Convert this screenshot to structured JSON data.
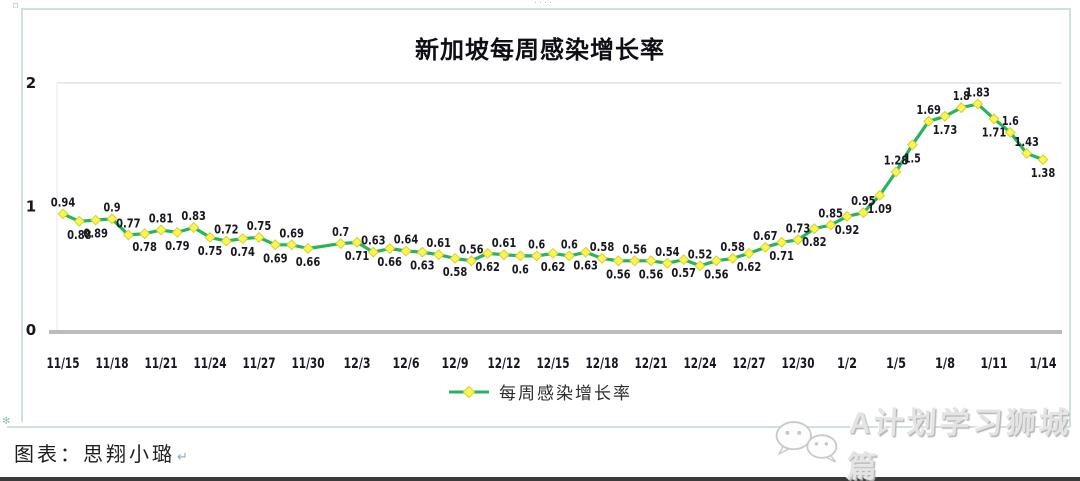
{
  "chart_data": {
    "type": "line",
    "title": "新加坡每周感染增长率",
    "legend": "每周感染增长率",
    "legend_position": "bottom-center",
    "ylim": [
      0,
      2
    ],
    "y_ticks": [
      0,
      1,
      2
    ],
    "x_tick_labels": [
      "11/15",
      "11/18",
      "11/21",
      "11/24",
      "11/27",
      "11/30",
      "12/3",
      "12/6",
      "12/9",
      "12/12",
      "12/15",
      "12/18",
      "12/21",
      "12/24",
      "12/27",
      "12/30",
      "1/2",
      "1/5",
      "1/8",
      "1/11",
      "1/14"
    ],
    "points_per_tick_interval": 3,
    "values": [
      0.94,
      0.88,
      0.89,
      0.9,
      0.77,
      0.78,
      0.81,
      0.79,
      0.83,
      0.75,
      0.72,
      0.74,
      0.75,
      0.69,
      0.69,
      0.66,
      null,
      0.7,
      0.71,
      0.63,
      0.66,
      0.64,
      0.63,
      0.61,
      0.58,
      0.56,
      0.62,
      0.61,
      0.6,
      0.6,
      0.62,
      0.6,
      0.63,
      0.58,
      0.56,
      0.56,
      0.56,
      0.54,
      0.57,
      0.52,
      0.56,
      0.58,
      0.62,
      0.67,
      0.71,
      0.73,
      0.82,
      0.85,
      0.92,
      0.95,
      1.09,
      1.28,
      1.5,
      1.69,
      1.73,
      1.8,
      1.83,
      1.71,
      1.6,
      1.43,
      1.38
    ],
    "label_positions": [
      "above",
      "below",
      "below",
      "above",
      "above",
      "below",
      "above",
      "below",
      "above",
      "below",
      "above",
      "below",
      "above",
      "below",
      "above",
      "below",
      null,
      "above",
      "below",
      "above",
      "below",
      "above",
      "below",
      "above",
      "below",
      "above",
      "below",
      "above",
      "below",
      "above",
      "below",
      "above",
      "below",
      "above",
      "below",
      "above",
      "below",
      "above",
      "below",
      "above",
      "below",
      "above",
      "below",
      "above",
      "below",
      "above",
      "below",
      "above",
      "below",
      "above",
      "below",
      "above",
      "below",
      "above",
      "below",
      "above",
      "above",
      "below",
      "above",
      "above",
      "below"
    ],
    "grid": "top-line-only",
    "line_color": "#27b45c",
    "marker_shape": "diamond",
    "marker_fill": "#fcf64b",
    "marker_stroke": "#d3cf3e",
    "gridline_color": "#dadddf",
    "axis_color": "#b9bdc0",
    "label_color": "#17171f"
  },
  "footer": {
    "text": "图表：思翔小璐",
    "return_mark": "↵"
  },
  "watermark": {
    "icon": "wechat-logo",
    "text": "A计划学习狮城篇"
  },
  "frame": {
    "border_color": "#cfe1dd",
    "top_handle": "····"
  }
}
